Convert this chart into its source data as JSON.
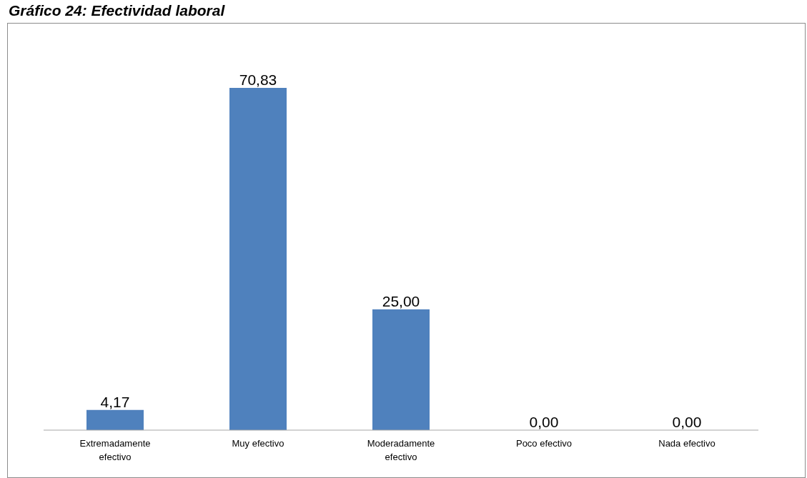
{
  "chart_data": {
    "type": "bar",
    "title": "Gráfico 24: Efectividad laboral",
    "categories": [
      "Extremadamente efectivo",
      "Muy efectivo",
      "Moderadamente efectivo",
      "Poco efectivo",
      "Nada efectivo"
    ],
    "values": [
      4.17,
      70.83,
      25.0,
      0,
      0
    ],
    "color": "#4f81bd",
    "value_labels": [
      "4,17",
      "70,83",
      "25,00",
      "0,00",
      "0,00"
    ],
    "tick_labels": "x"
  }
}
